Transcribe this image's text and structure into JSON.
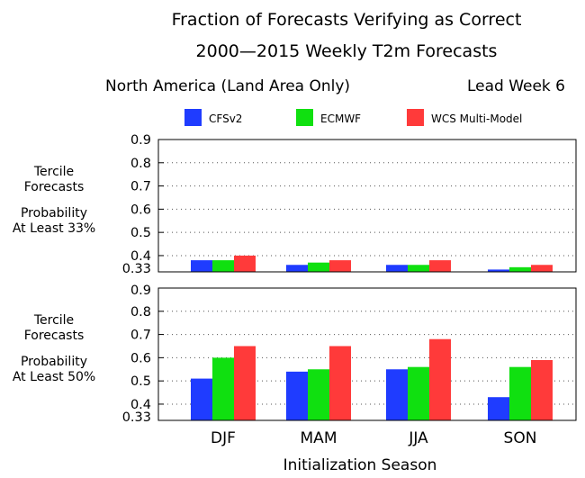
{
  "title_line1": "Fraction of Forecasts Verifying as Correct",
  "title_line2": "2000—2015 Weekly T2m Forecasts",
  "region": "North America (Land Area Only)",
  "lead": "Lead Week 6",
  "colors": {
    "CFSv2": "#1f3cff",
    "ECMWF": "#10e010",
    "WCS Multi-Model": "#ff3a3a"
  },
  "chart_data": {
    "type": "bar",
    "xlabel": "Initialization Season",
    "categories": [
      "DJF",
      "MAM",
      "JJA",
      "SON"
    ],
    "legend": [
      "CFSv2",
      "ECMWF",
      "WCS Multi-Model"
    ],
    "legend_position": "top",
    "grid": "horizontal dotted",
    "panels": [
      {
        "side_label": [
          "Tercile",
          "Forecasts",
          "",
          "Probability",
          "At Least 33%"
        ],
        "ylim": [
          0.33,
          0.9
        ],
        "yticks": [
          0.33,
          0.4,
          0.5,
          0.6,
          0.7,
          0.8,
          0.9
        ],
        "ytick_labels": [
          "0.33",
          "0.4",
          "0.5",
          "0.6",
          "0.7",
          "0.8",
          "0.9"
        ],
        "series": [
          {
            "name": "CFSv2",
            "values": [
              0.38,
              0.36,
              0.36,
              0.34
            ]
          },
          {
            "name": "ECMWF",
            "values": [
              0.38,
              0.37,
              0.36,
              0.35
            ]
          },
          {
            "name": "WCS Multi-Model",
            "values": [
              0.4,
              0.38,
              0.38,
              0.36
            ]
          }
        ]
      },
      {
        "side_label": [
          "Tercile",
          "Forecasts",
          "",
          "Probability",
          "At Least 50%"
        ],
        "ylim": [
          0.33,
          0.9
        ],
        "yticks": [
          0.33,
          0.4,
          0.5,
          0.6,
          0.7,
          0.8,
          0.9
        ],
        "ytick_labels": [
          "0.33",
          "0.4",
          "0.5",
          "0.6",
          "0.7",
          "0.8",
          "0.9"
        ],
        "series": [
          {
            "name": "CFSv2",
            "values": [
              0.51,
              0.54,
              0.55,
              0.43
            ]
          },
          {
            "name": "ECMWF",
            "values": [
              0.6,
              0.55,
              0.56,
              0.56
            ]
          },
          {
            "name": "WCS Multi-Model",
            "values": [
              0.65,
              0.65,
              0.68,
              0.59
            ]
          }
        ]
      }
    ]
  }
}
